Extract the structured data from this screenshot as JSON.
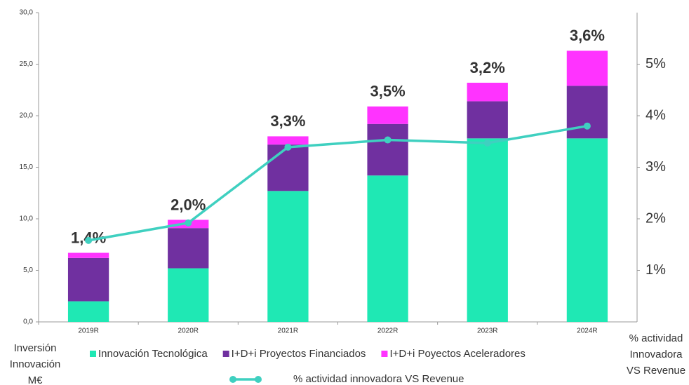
{
  "chart_data": {
    "type": "stacked_bar_line",
    "categories": [
      "2019R",
      "2020R",
      "2021R",
      "2022R",
      "2023R",
      "2024R"
    ],
    "series": [
      {
        "name": "Innovación Tecnológica",
        "color": "#1fe8b4",
        "values": [
          2.0,
          5.2,
          12.7,
          14.2,
          17.8,
          17.8
        ]
      },
      {
        "name": "I+D+i Proyectos Financiados",
        "color": "#7030a0",
        "values": [
          4.2,
          3.9,
          4.5,
          5.0,
          3.6,
          5.1
        ]
      },
      {
        "name": "I+D+i Poyectos Aceleradores",
        "color": "#ff33ff",
        "values": [
          0.5,
          0.8,
          0.8,
          1.7,
          1.8,
          3.4
        ]
      },
      {
        "name": "% actividad innovadora VS Revenue",
        "color": "#3fd0c0",
        "axis": "y2",
        "type": "line",
        "values": [
          1.58,
          1.92,
          3.39,
          3.53,
          3.47,
          3.8
        ]
      }
    ],
    "annotations": [
      "1,4%",
      "2,0%",
      "3,3%",
      "3,5%",
      "3,2%",
      "3,6%"
    ],
    "annotation_color": "#1fb4e8",
    "y_label": [
      "Inversión",
      "Innovación",
      "M€"
    ],
    "y2_label": [
      "% actividad",
      "Innovadora",
      "VS Revenue"
    ],
    "ylim": [
      0,
      30
    ],
    "yticks": [
      {
        "value": 0,
        "label": "0,0"
      },
      {
        "value": 5,
        "label": "5,0"
      },
      {
        "value": 10,
        "label": "10,0"
      },
      {
        "value": 15,
        "label": "15,0"
      },
      {
        "value": 20,
        "label": "20,0"
      },
      {
        "value": 25,
        "label": "25,0"
      },
      {
        "value": 30,
        "label": "30,0"
      }
    ],
    "y2lim": [
      0,
      6
    ],
    "y2ticks": [
      {
        "value": 1,
        "label": "1%"
      },
      {
        "value": 2,
        "label": "2%"
      },
      {
        "value": 3,
        "label": "3%"
      },
      {
        "value": 4,
        "label": "4%"
      },
      {
        "value": 5,
        "label": "5%"
      }
    ],
    "grid": false
  }
}
